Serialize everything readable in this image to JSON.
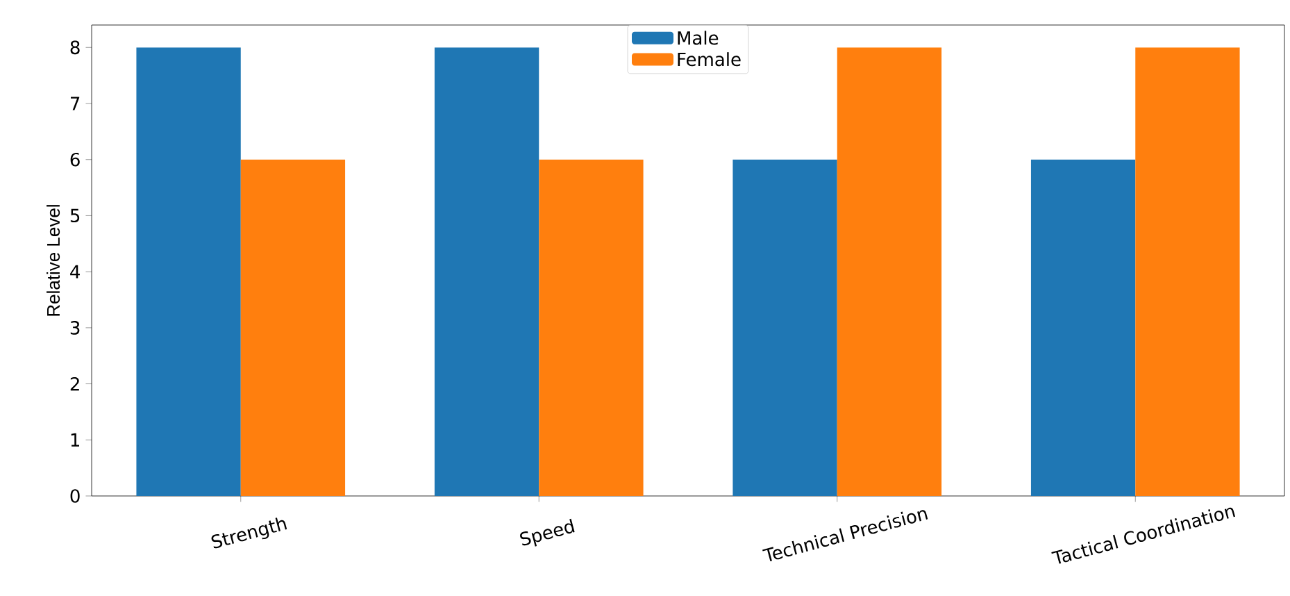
{
  "chart_data": {
    "type": "bar",
    "ylabel": "Relative Level",
    "categories": [
      "Strength",
      "Speed",
      "Technical Precision",
      "Tactical Coordination"
    ],
    "series": [
      {
        "name": "Male",
        "color": "#1f77b4",
        "values": [
          8,
          8,
          6,
          6
        ]
      },
      {
        "name": "Female",
        "color": "#ff7f0e",
        "values": [
          6,
          6,
          8,
          8
        ]
      }
    ],
    "ylim": [
      0,
      8.4
    ],
    "yticks": [
      0,
      1,
      2,
      3,
      4,
      5,
      6,
      7,
      8
    ],
    "legend": "top",
    "grid": false
  }
}
